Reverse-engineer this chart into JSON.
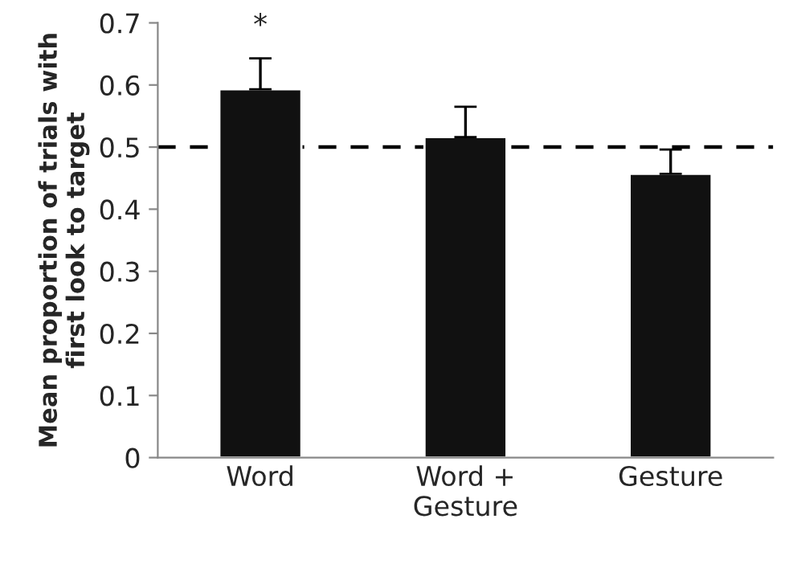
{
  "chart_data": {
    "type": "bar",
    "ylabel": "Mean proportion of trials with\nfirst look to target",
    "categories": [
      "Word",
      "Word +\nGesture",
      "Gesture"
    ],
    "values": [
      0.593,
      0.516,
      0.457
    ],
    "errors": [
      [
        0.593,
        0.643
      ],
      [
        0.516,
        0.565
      ],
      [
        0.457,
        0.496
      ]
    ],
    "color": "#111111",
    "ylim": [
      0,
      0.7
    ],
    "yticks": [
      0,
      0.1,
      0.2,
      0.3,
      0.4,
      0.5,
      0.6,
      0.7
    ],
    "ref_lines": [
      {
        "axis": "y",
        "value": 0.5,
        "line_style": "dashed",
        "color": "#000000"
      }
    ],
    "annotations": [
      "*"
    ],
    "grid": false
  }
}
